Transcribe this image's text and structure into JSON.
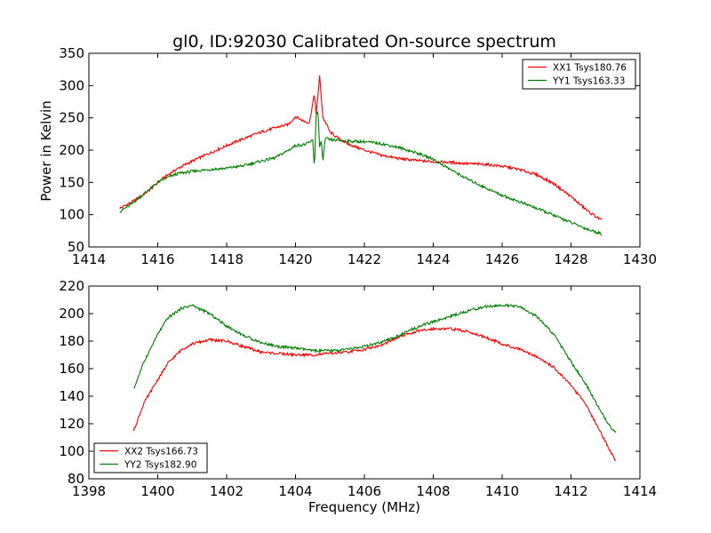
{
  "figure": {
    "title": "gl0, ID:92030 Calibrated On-source spectrum",
    "ylabel": "Power in Kelvin",
    "xlabel": "Frequency (MHz)"
  },
  "chart_data": [
    {
      "type": "line",
      "panel": "top",
      "xlim": [
        1414,
        1430
      ],
      "ylim": [
        50,
        350
      ],
      "xticks": [
        "1414",
        "1416",
        "1418",
        "1420",
        "1422",
        "1424",
        "1426",
        "1428",
        "1430"
      ],
      "yticks": [
        "50",
        "100",
        "150",
        "200",
        "250",
        "300",
        "350"
      ],
      "xtick_values": [
        1414,
        1416,
        1418,
        1420,
        1422,
        1424,
        1426,
        1428,
        1430
      ],
      "ytick_values": [
        50,
        100,
        150,
        200,
        250,
        300,
        350
      ],
      "legend": "top-right",
      "grid": false,
      "series": [
        {
          "name": "XX1 Tsys180.76",
          "color": "#ff0000",
          "x": [
            1414.9,
            1415.2,
            1415.5,
            1415.8,
            1416.0,
            1416.3,
            1416.6,
            1417.0,
            1417.5,
            1418.0,
            1418.5,
            1419.0,
            1419.5,
            1419.8,
            1420.0,
            1420.2,
            1420.4,
            1420.5,
            1420.55,
            1420.6,
            1420.7,
            1420.75,
            1420.8,
            1420.9,
            1421.0,
            1421.2,
            1421.5,
            1422.0,
            1422.5,
            1423.0,
            1423.5,
            1424.0,
            1424.5,
            1425.0,
            1425.5,
            1426.0,
            1426.5,
            1427.0,
            1427.5,
            1428.0,
            1428.5,
            1428.9
          ],
          "y": [
            110,
            118,
            128,
            140,
            150,
            162,
            172,
            183,
            195,
            207,
            218,
            228,
            236,
            240,
            252,
            246,
            242,
            272,
            288,
            255,
            315,
            280,
            250,
            240,
            228,
            220,
            210,
            200,
            192,
            187,
            184,
            182,
            181,
            179,
            178,
            175,
            170,
            162,
            148,
            128,
            105,
            91
          ]
        },
        {
          "name": "YY1 Tsys163.33",
          "color": "#008000",
          "x": [
            1414.9,
            1415.2,
            1415.5,
            1415.8,
            1416.0,
            1416.3,
            1416.6,
            1417.0,
            1417.5,
            1418.0,
            1418.5,
            1419.0,
            1419.4,
            1419.8,
            1420.0,
            1420.3,
            1420.5,
            1420.55,
            1420.6,
            1420.65,
            1420.7,
            1420.75,
            1420.8,
            1420.85,
            1420.9,
            1421.0,
            1421.5,
            1422.0,
            1422.5,
            1423.0,
            1423.5,
            1424.0,
            1424.5,
            1425.0,
            1425.5,
            1426.0,
            1426.5,
            1427.0,
            1427.5,
            1428.0,
            1428.5,
            1428.9
          ],
          "y": [
            105,
            115,
            128,
            141,
            150,
            158,
            164,
            167,
            170,
            172,
            176,
            183,
            188,
            200,
            207,
            209,
            215,
            172,
            255,
            262,
            205,
            212,
            183,
            215,
            218,
            216,
            214,
            213,
            210,
            204,
            196,
            186,
            170,
            155,
            142,
            130,
            120,
            110,
            99,
            88,
            77,
            70
          ]
        }
      ]
    },
    {
      "type": "line",
      "panel": "bottom",
      "xlim": [
        1398,
        1414
      ],
      "ylim": [
        80,
        220
      ],
      "xticks": [
        "1398",
        "1400",
        "1402",
        "1404",
        "1406",
        "1408",
        "1410",
        "1412",
        "1414"
      ],
      "yticks": [
        "80",
        "100",
        "120",
        "140",
        "160",
        "180",
        "200",
        "220"
      ],
      "xtick_values": [
        1398,
        1400,
        1402,
        1404,
        1406,
        1408,
        1410,
        1412,
        1414
      ],
      "ytick_values": [
        80,
        100,
        120,
        140,
        160,
        180,
        200,
        220
      ],
      "legend": "bottom-left",
      "grid": false,
      "series": [
        {
          "name": "XX2 Tsys166.73",
          "color": "#ff0000",
          "x": [
            1399.3,
            1399.6,
            1400.0,
            1400.3,
            1400.7,
            1401.0,
            1401.5,
            1402.0,
            1402.5,
            1403.0,
            1403.5,
            1404.0,
            1404.5,
            1405.0,
            1405.5,
            1406.0,
            1406.5,
            1407.0,
            1407.5,
            1408.0,
            1408.5,
            1409.0,
            1409.5,
            1410.0,
            1410.5,
            1411.0,
            1411.5,
            1412.0,
            1412.4,
            1412.8,
            1413.1,
            1413.3
          ],
          "y": [
            115,
            135,
            152,
            164,
            174,
            178,
            181,
            180,
            176,
            172,
            171,
            170,
            170,
            171,
            172,
            174,
            177,
            183,
            187,
            189,
            189,
            187,
            183,
            178,
            174,
            169,
            161,
            148,
            135,
            117,
            102,
            93
          ]
        },
        {
          "name": "YY2 Tsys182.90",
          "color": "#008000",
          "x": [
            1399.3,
            1399.6,
            1400.0,
            1400.3,
            1400.7,
            1401.0,
            1401.5,
            1402.0,
            1402.5,
            1403.0,
            1403.5,
            1404.0,
            1404.5,
            1405.0,
            1405.5,
            1406.0,
            1406.5,
            1407.0,
            1407.5,
            1408.0,
            1408.5,
            1409.0,
            1409.5,
            1410.0,
            1410.5,
            1411.0,
            1411.5,
            1412.0,
            1412.4,
            1412.8,
            1413.1,
            1413.3
          ],
          "y": [
            145,
            165,
            185,
            197,
            204,
            206,
            200,
            191,
            184,
            179,
            176,
            175,
            173,
            173,
            174,
            176,
            179,
            184,
            190,
            194,
            198,
            202,
            205,
            206,
            205,
            198,
            185,
            165,
            150,
            132,
            119,
            114
          ]
        }
      ]
    }
  ]
}
